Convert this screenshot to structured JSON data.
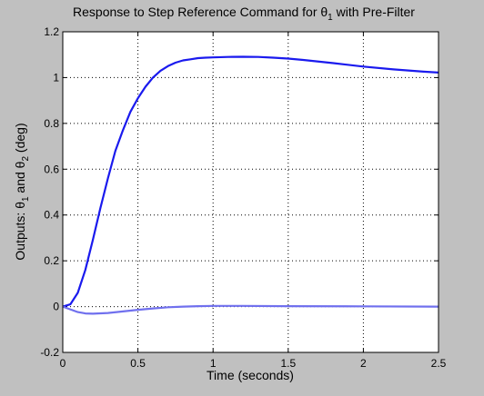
{
  "chart_data": {
    "type": "line",
    "title": {
      "before": "Response to Step Reference Command for θ",
      "sub": "1",
      "after": " with Pre-Filter"
    },
    "xlabel": "Time (seconds)",
    "ylabel": {
      "p1": "Outputs: θ",
      "s1": "1",
      "p2": " and θ",
      "s2": "2",
      "p3": " (deg)"
    },
    "xlim": [
      0,
      2.5
    ],
    "ylim": [
      -0.2,
      1.2
    ],
    "xticks": [
      0,
      0.5,
      1,
      1.5,
      2,
      2.5
    ],
    "xtick_labels": [
      "0",
      "0.5",
      "1",
      "1.5",
      "2",
      "2.5"
    ],
    "yticks": [
      -0.2,
      0,
      0.2,
      0.4,
      0.6,
      0.8,
      1,
      1.2
    ],
    "ytick_labels": [
      "-0.2",
      "0",
      "0.2",
      "0.4",
      "0.6",
      "0.8",
      "1",
      "1.2"
    ],
    "grid": true,
    "series": [
      {
        "color": "#1a1aee",
        "x": [
          0,
          0.05,
          0.1,
          0.15,
          0.2,
          0.25,
          0.3,
          0.35,
          0.4,
          0.45,
          0.5,
          0.55,
          0.6,
          0.65,
          0.7,
          0.75,
          0.8,
          0.85,
          0.9,
          0.95,
          1.0,
          1.1,
          1.2,
          1.3,
          1.4,
          1.5,
          1.6,
          1.8,
          2.0,
          2.2,
          2.4,
          2.5
        ],
        "values": [
          0,
          0.01,
          0.06,
          0.16,
          0.29,
          0.43,
          0.56,
          0.68,
          0.77,
          0.85,
          0.91,
          0.96,
          1.0,
          1.03,
          1.05,
          1.065,
          1.075,
          1.08,
          1.085,
          1.087,
          1.088,
          1.09,
          1.091,
          1.09,
          1.087,
          1.083,
          1.077,
          1.063,
          1.048,
          1.036,
          1.026,
          1.022
        ]
      },
      {
        "color": "#7070ee",
        "x": [
          0,
          0.05,
          0.1,
          0.15,
          0.2,
          0.3,
          0.4,
          0.5,
          0.6,
          0.7,
          0.8,
          0.9,
          1.0,
          1.2,
          1.5,
          2.0,
          2.5
        ],
        "values": [
          0,
          -0.012,
          -0.024,
          -0.03,
          -0.031,
          -0.028,
          -0.021,
          -0.014,
          -0.008,
          -0.003,
          0.0,
          0.002,
          0.003,
          0.003,
          0.002,
          0.001,
          0.0
        ]
      }
    ]
  }
}
